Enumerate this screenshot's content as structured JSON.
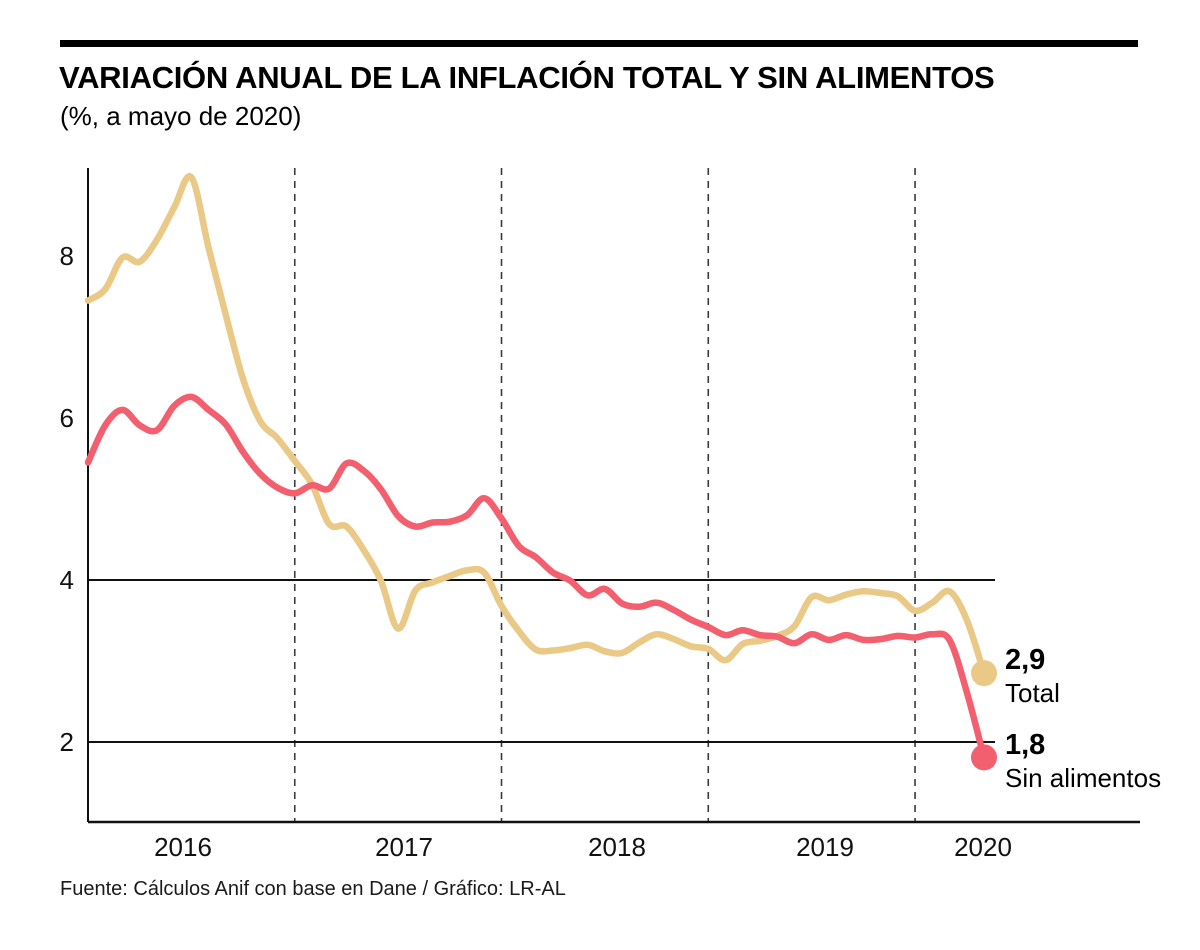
{
  "chart_data": {
    "type": "line",
    "title": "VARIACIÓN ANUAL DE LA INFLACIÓN TOTAL Y SIN ALIMENTOS",
    "subtitle": "(%, a mayo de 2020)",
    "frequency": "monthly",
    "x_range": [
      "2016-01",
      "2020-05"
    ],
    "year_labels": [
      "2016",
      "2017",
      "2018",
      "2019",
      "2020"
    ],
    "yticks": [
      8,
      6,
      4,
      2
    ],
    "ylim": [
      1.0,
      9.1
    ],
    "reference_lines": [
      4,
      2
    ],
    "grid": "vertical-dashed-at-year-boundaries",
    "legend_position": "end-of-line",
    "series": [
      {
        "name": "Total",
        "color": "#EAC886",
        "value_label": "2,9",
        "end_value": 2.85,
        "values": [
          7.45,
          7.59,
          7.98,
          7.93,
          8.2,
          8.6,
          8.97,
          8.1,
          7.27,
          6.48,
          5.96,
          5.75,
          5.47,
          5.18,
          4.69,
          4.66,
          4.37,
          3.99,
          3.4,
          3.87,
          3.97,
          4.05,
          4.12,
          4.09,
          3.68,
          3.37,
          3.14,
          3.13,
          3.16,
          3.2,
          3.12,
          3.1,
          3.23,
          3.33,
          3.27,
          3.18,
          3.15,
          3.01,
          3.21,
          3.25,
          3.31,
          3.43,
          3.79,
          3.75,
          3.82,
          3.86,
          3.84,
          3.8,
          3.62,
          3.72,
          3.86,
          3.51,
          2.85
        ]
      },
      {
        "name": "Sin alimentos",
        "color": "#F25F6E",
        "value_label": "1,8",
        "end_value": 1.81,
        "values": [
          5.45,
          5.91,
          6.1,
          5.91,
          5.85,
          6.15,
          6.26,
          6.1,
          5.92,
          5.58,
          5.31,
          5.14,
          5.07,
          5.17,
          5.13,
          5.44,
          5.35,
          5.12,
          4.79,
          4.66,
          4.71,
          4.72,
          4.8,
          5.01,
          4.76,
          4.42,
          4.28,
          4.09,
          3.99,
          3.81,
          3.89,
          3.71,
          3.67,
          3.72,
          3.63,
          3.51,
          3.42,
          3.32,
          3.38,
          3.32,
          3.3,
          3.22,
          3.33,
          3.26,
          3.32,
          3.26,
          3.27,
          3.31,
          3.29,
          3.33,
          3.26,
          2.62,
          1.81
        ]
      }
    ],
    "source": "Fuente: Cálculos Anif con base en Dane / Gráfico: LR-AL"
  }
}
